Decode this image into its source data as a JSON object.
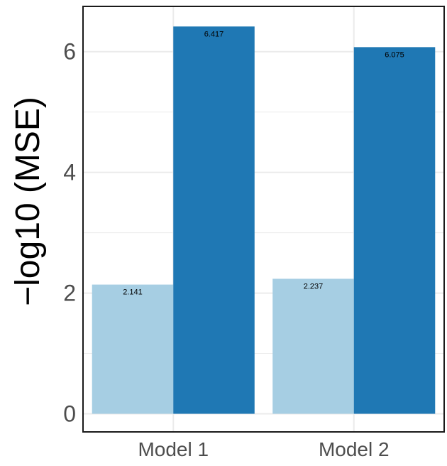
{
  "chart_data": {
    "type": "bar",
    "categories": [
      "Model 1",
      "Model 2"
    ],
    "series": [
      {
        "values": [
          2.141,
          2.237
        ],
        "color": "#a6cee3"
      },
      {
        "values": [
          6.417,
          6.075
        ],
        "color": "#1f78b4"
      }
    ],
    "data_labels": [
      [
        "2.141",
        "2.237"
      ],
      [
        "6.417",
        "6.075"
      ]
    ],
    "title": "",
    "xlabel": "",
    "ylabel": "−log10 (MSE)",
    "ylim": [
      -0.3,
      6.75
    ],
    "yticks": [
      0,
      2,
      4,
      6
    ],
    "ytick_labels": [
      "0",
      "2",
      "4",
      "6"
    ],
    "grid": true,
    "legend": "none",
    "colors": {
      "panel_border": "#1a1a1a",
      "grid": "#ebebeb",
      "tick_text": "#4d4d4d"
    }
  }
}
